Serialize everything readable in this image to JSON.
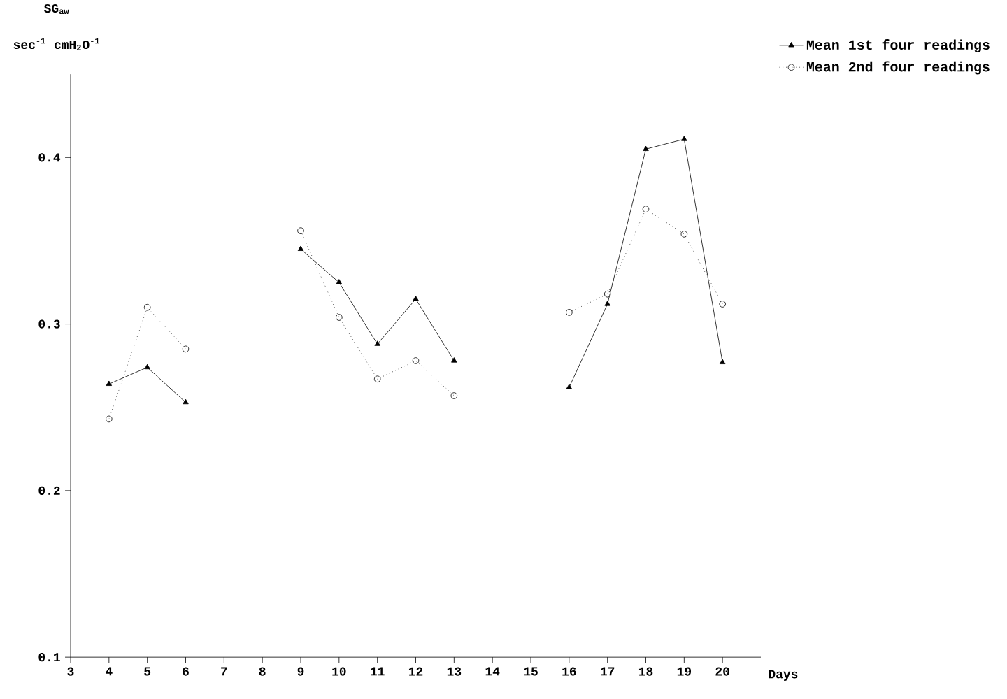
{
  "chart_data": {
    "type": "line",
    "xlabel": "Days",
    "ylabel": "SG$_{aw}$",
    "annotations": [
      "sec$^{-1}$ cmH$_{2}$O$^{-1}$"
    ],
    "x": [
      4,
      5,
      6,
      7,
      8,
      9,
      10,
      11,
      12,
      13,
      14,
      15,
      16,
      17,
      18,
      19,
      20
    ],
    "series": [
      {
        "name": "Mean 1st four readings",
        "color": "#000000",
        "marker": "triangle",
        "line_style": "solid",
        "values": [
          0.264,
          0.274,
          0.253,
          null,
          null,
          0.345,
          0.325,
          0.288,
          0.315,
          0.278,
          null,
          null,
          0.262,
          0.312,
          0.405,
          0.411,
          0.277
        ]
      },
      {
        "name": "Mean 2nd four readings",
        "color": "#000000",
        "marker": "circle",
        "line_style": "dotted",
        "values": [
          0.243,
          0.31,
          0.285,
          null,
          null,
          0.356,
          0.304,
          0.267,
          0.278,
          0.257,
          null,
          null,
          0.307,
          0.318,
          0.369,
          0.354,
          0.312
        ]
      }
    ],
    "xlim": [
      3,
      21
    ],
    "ylim": [
      0.1,
      0.45
    ],
    "xticks": [
      3,
      4,
      5,
      6,
      7,
      8,
      9,
      10,
      11,
      12,
      13,
      14,
      15,
      16,
      17,
      18,
      19,
      20
    ],
    "yticks": [
      0.1,
      0.2,
      0.3,
      0.4
    ],
    "grid": false,
    "legend": "top right"
  }
}
